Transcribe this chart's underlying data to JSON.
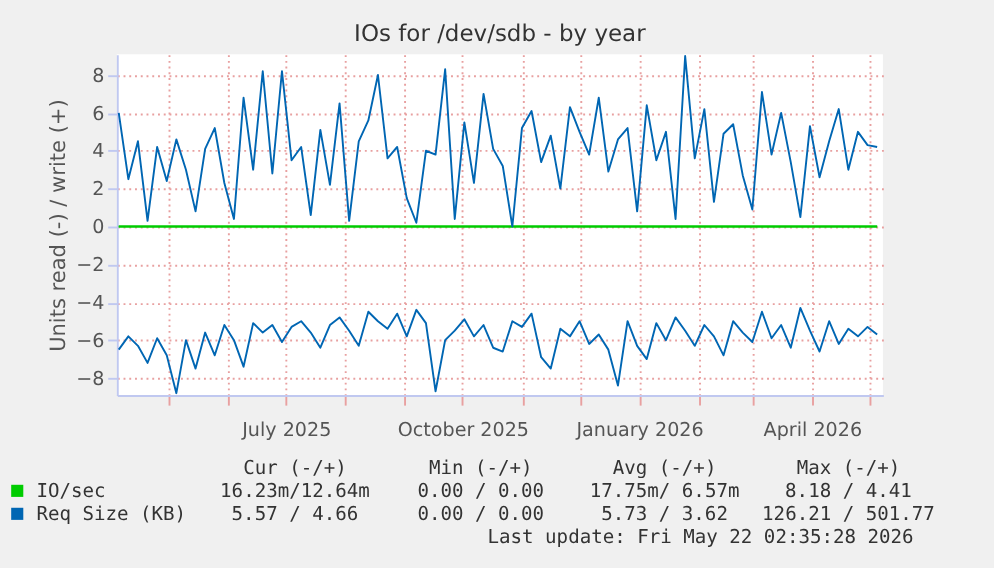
{
  "chart_data": {
    "type": "line",
    "title": "IOs for /dev/sdb - by year",
    "ylabel": "Units read (-) / write (+)",
    "x": [
      "2025-04-05",
      "2025-04-10",
      "2025-04-15",
      "2025-04-20",
      "2025-04-25",
      "2025-04-30",
      "2025-05-05",
      "2025-05-10",
      "2025-05-15",
      "2025-05-20",
      "2025-05-25",
      "2025-05-30",
      "2025-06-04",
      "2025-06-09",
      "2025-06-14",
      "2025-06-19",
      "2025-06-24",
      "2025-06-29",
      "2025-07-04",
      "2025-07-09",
      "2025-07-14",
      "2025-07-19",
      "2025-07-24",
      "2025-07-29",
      "2025-08-03",
      "2025-08-08",
      "2025-08-13",
      "2025-08-18",
      "2025-08-23",
      "2025-08-28",
      "2025-09-02",
      "2025-09-07",
      "2025-09-12",
      "2025-09-17",
      "2025-09-22",
      "2025-09-27",
      "2025-10-02",
      "2025-10-07",
      "2025-10-12",
      "2025-10-17",
      "2025-10-22",
      "2025-10-27",
      "2025-11-01",
      "2025-11-06",
      "2025-11-11",
      "2025-11-16",
      "2025-11-21",
      "2025-11-26",
      "2025-12-01",
      "2025-12-06",
      "2025-12-11",
      "2025-12-16",
      "2025-12-21",
      "2025-12-26",
      "2025-12-31",
      "2026-01-05",
      "2026-01-10",
      "2026-01-15",
      "2026-01-20",
      "2026-01-25",
      "2026-01-30",
      "2026-02-04",
      "2026-02-09",
      "2026-02-14",
      "2026-02-19",
      "2026-02-24",
      "2026-03-01",
      "2026-03-06",
      "2026-03-11",
      "2026-03-16",
      "2026-03-21",
      "2026-03-26",
      "2026-03-31",
      "2026-04-05",
      "2026-04-10",
      "2026-04-15",
      "2026-04-20",
      "2026-04-25",
      "2026-04-30",
      "2026-05-05"
    ],
    "series": [
      {
        "name": "IO/sec",
        "color": "#00cc00",
        "x": [
          "2025-04-05",
          "2026-05-05"
        ],
        "values": [
          0,
          0
        ]
      },
      {
        "color": "#00cc00",
        "x": [
          "2025-04-05",
          "2026-05-05"
        ],
        "values": [
          0,
          0
        ]
      },
      {
        "name": "Req Size (KB)",
        "color": "#0066b3",
        "values": [
          6.0,
          2.5,
          4.5,
          0.3,
          4.2,
          2.4,
          4.6,
          3.0,
          0.8,
          4.1,
          5.2,
          2.3,
          0.4,
          6.8,
          3.0,
          8.2,
          2.8,
          8.2,
          3.5,
          4.2,
          0.6,
          5.1,
          2.2,
          6.5,
          0.3,
          4.5,
          5.6,
          8.0,
          3.6,
          4.2,
          1.5,
          0.2,
          4.0,
          3.8,
          8.3,
          0.4,
          5.5,
          2.3,
          7.0,
          4.1,
          3.2,
          0.0,
          5.2,
          6.1,
          3.4,
          4.8,
          2.0,
          6.3,
          5.0,
          3.8,
          6.8,
          2.9,
          4.6,
          5.2,
          0.8,
          6.4,
          3.5,
          5.0,
          0.4,
          9.0,
          3.6,
          6.2,
          1.3,
          4.9,
          5.4,
          2.7,
          0.9,
          7.1,
          3.8,
          6.0,
          3.4,
          0.5,
          5.3,
          2.6,
          4.5,
          6.2,
          3.0,
          5.0,
          4.3,
          4.2
        ]
      },
      {
        "color": "#0066b3",
        "values": [
          -6.5,
          -5.8,
          -6.3,
          -7.2,
          -5.9,
          -6.8,
          -8.8,
          -6.0,
          -7.5,
          -5.6,
          -6.8,
          -5.2,
          -6.0,
          -7.4,
          -5.1,
          -5.6,
          -5.2,
          -6.1,
          -5.3,
          -5.0,
          -5.6,
          -6.4,
          -5.2,
          -4.8,
          -5.5,
          -6.3,
          -4.5,
          -5.0,
          -5.4,
          -4.6,
          -5.8,
          -4.4,
          -5.1,
          -8.7,
          -6.0,
          -5.5,
          -4.9,
          -5.8,
          -5.2,
          -6.4,
          -6.6,
          -5.0,
          -5.3,
          -4.6,
          -6.9,
          -7.5,
          -5.4,
          -5.8,
          -5.0,
          -6.2,
          -5.7,
          -6.5,
          -8.4,
          -5.0,
          -6.3,
          -7.0,
          -5.1,
          -6.0,
          -4.8,
          -5.5,
          -6.3,
          -5.2,
          -5.8,
          -6.8,
          -5.0,
          -5.6,
          -6.1,
          -4.5,
          -5.9,
          -5.2,
          -6.4,
          -4.3,
          -5.5,
          -6.6,
          -5.0,
          -6.2,
          -5.4,
          -5.8,
          -5.3,
          -5.7
        ]
      }
    ],
    "xlim": [
      "2025-04-04",
      "2026-05-08"
    ],
    "xticks": [
      {
        "value": "2025-05-01",
        "label": null
      },
      {
        "value": "2025-06-01",
        "label": null
      },
      {
        "value": "2025-07-01",
        "label": "July 2025"
      },
      {
        "value": "2025-08-01",
        "label": null
      },
      {
        "value": "2025-09-01",
        "label": null
      },
      {
        "value": "2025-10-01",
        "label": "October 2025"
      },
      {
        "value": "2025-11-01",
        "label": null
      },
      {
        "value": "2025-12-01",
        "label": null
      },
      {
        "value": "2026-01-01",
        "label": "January 2026"
      },
      {
        "value": "2026-02-01",
        "label": null
      },
      {
        "value": "2026-03-01",
        "label": null
      },
      {
        "value": "2026-04-01",
        "label": "April 2026"
      },
      {
        "value": "2026-05-01",
        "label": null
      }
    ],
    "ylim": [
      -8.9,
      9.1
    ],
    "yticks": [
      -8,
      -6,
      -4,
      -2,
      0,
      2,
      4,
      6,
      8
    ],
    "grid": true,
    "legend": "bottom",
    "annotations": [
      "Cur (-/+)",
      "Min (-/+)",
      "Avg (-/+)",
      "Max (-/+)",
      "16.23m/12.64m",
      "0.00 / 0.00",
      "17.75m/ 6.57m",
      "8.18 / 4.41",
      "5.57 / 4.66",
      "0.00 / 0.00",
      "5.73 / 3.62",
      "126.21 / 501.77",
      "Last update: Fri May 22 02:35:28 2026"
    ]
  }
}
